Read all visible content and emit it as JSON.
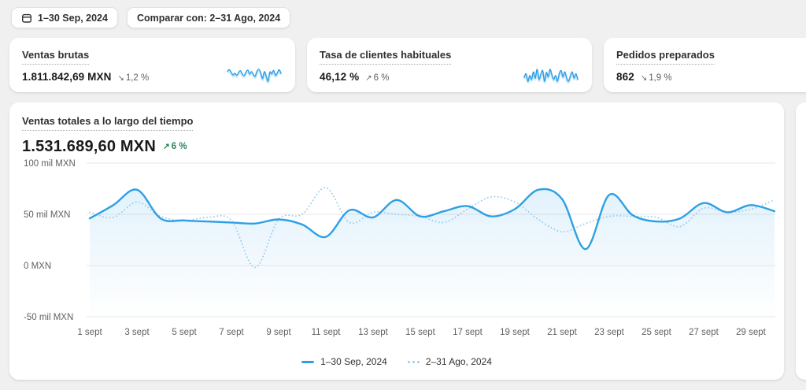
{
  "topbar": {
    "date_range": "1–30 Sep, 2024",
    "compare": "Comparar con: 2–31 Ago, 2024"
  },
  "metric_cards": [
    {
      "title": "Ventas brutas",
      "value": "1.811.842,69 MXN",
      "arrow": "↘",
      "delta": "1,2 %",
      "direction": "down",
      "sparkline": [
        58,
        63,
        55,
        47,
        52,
        46,
        54,
        60,
        50,
        45,
        55,
        62,
        50,
        57,
        49,
        43,
        58,
        64,
        54,
        36,
        57,
        43,
        28,
        56,
        50,
        61,
        46,
        53,
        63,
        52
      ]
    },
    {
      "title": "Tasa de clientes habituales",
      "value": "46,12 %",
      "arrow": "↗",
      "delta": "6 %",
      "direction": "up",
      "sparkline": [
        50,
        56,
        44,
        53,
        47,
        59,
        49,
        63,
        47,
        55,
        61,
        44,
        58,
        51,
        63,
        54,
        47,
        53,
        44,
        56,
        61,
        51,
        59,
        49,
        44,
        52,
        59,
        49,
        56,
        47
      ]
    },
    {
      "title": "Pedidos preparados",
      "value": "862",
      "arrow": "↘",
      "delta": "1,9 %",
      "direction": "down"
    }
  ],
  "main_chart": {
    "title": "Ventas totales a lo largo del tiempo",
    "value": "1.531.689,60 MXN",
    "arrow": "↗",
    "delta": "6 %",
    "delta_direction": "up",
    "delta_color": "#29845a"
  },
  "chart_data": {
    "type": "line",
    "unit": "mil MXN",
    "x_days": [
      1,
      2,
      3,
      4,
      5,
      6,
      7,
      8,
      9,
      10,
      11,
      12,
      13,
      14,
      15,
      16,
      17,
      18,
      19,
      20,
      21,
      22,
      23,
      24,
      25,
      26,
      27,
      28,
      29,
      30
    ],
    "series": [
      {
        "name": "1–30 Sep, 2024",
        "style": "solid",
        "values": [
          46,
          59,
          74,
          46,
          44,
          43,
          42,
          41,
          45,
          40,
          28,
          54,
          47,
          64,
          48,
          53,
          58,
          48,
          55,
          74,
          65,
          16,
          69,
          49,
          43,
          46,
          61,
          52,
          59,
          53
        ]
      },
      {
        "name": "2–31 Ago, 2024",
        "style": "dotted",
        "values": [
          52,
          47,
          62,
          48,
          44,
          47,
          44,
          -2,
          45,
          50,
          76,
          42,
          52,
          50,
          48,
          42,
          55,
          67,
          62,
          45,
          33,
          41,
          48,
          48,
          47,
          38,
          56,
          52,
          55,
          64
        ]
      }
    ],
    "ytick_values": [
      100,
      50,
      0,
      -50
    ],
    "ytick_labels": [
      "100 mil MXN",
      "50 mil MXN",
      "0 MXN",
      "-50 mil MXN"
    ],
    "xtick_days": [
      1,
      3,
      5,
      7,
      9,
      11,
      13,
      15,
      17,
      19,
      21,
      23,
      25,
      27,
      29
    ],
    "xtick_labels": [
      "1 sept",
      "3 sept",
      "5 sept",
      "7 sept",
      "9 sept",
      "11 sept",
      "13 sept",
      "15 sept",
      "17 sept",
      "19 sept",
      "21 sept",
      "23 sept",
      "25 sept",
      "27 sept",
      "29 sept"
    ],
    "ylim": [
      -50,
      100
    ],
    "grid": true,
    "legend_position": "bottom-center",
    "colors": {
      "current": "#2f9fe5",
      "previous": "#97cef1",
      "grid": "#e7e7e7",
      "axis_text": "#616161"
    }
  }
}
